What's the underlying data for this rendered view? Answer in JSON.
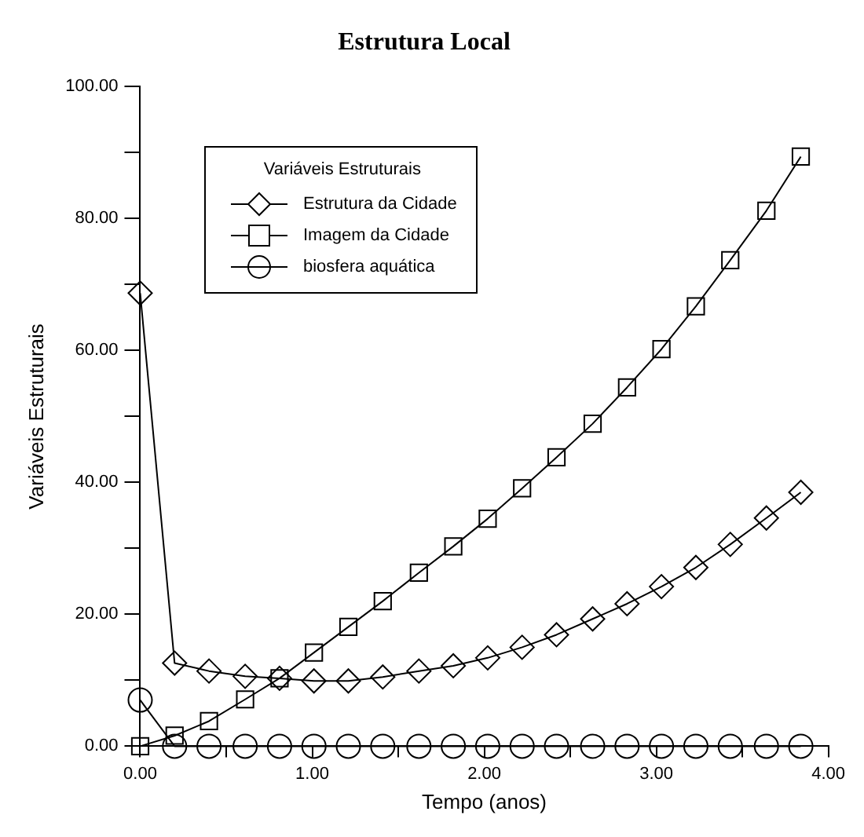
{
  "chart_data": {
    "type": "line",
    "title": "Estrutura Local",
    "xlabel": "Tempo (anos)",
    "ylabel": "Variáveis Estruturais",
    "legend_title": "Variáveis Estruturais",
    "legend": "top left",
    "x": [
      0,
      0.2,
      0.4,
      0.61,
      0.81,
      1.01,
      1.21,
      1.41,
      1.62,
      1.82,
      2.02,
      2.22,
      2.42,
      2.63,
      2.83,
      3.03,
      3.23,
      3.43,
      3.64,
      3.84
    ],
    "series": [
      {
        "name": "Estrutura da Cidade",
        "color": "#000000",
        "marker": "diamond",
        "values": [
          68.7,
          12.6,
          11.4,
          10.6,
          10.3,
          9.9,
          9.9,
          10.5,
          11.4,
          12.2,
          13.4,
          15.0,
          16.9,
          19.3,
          21.6,
          24.2,
          27.1,
          30.6,
          34.6,
          38.5
        ]
      },
      {
        "name": "Imagem da Cidade",
        "color": "#000000",
        "marker": "square",
        "values": [
          0,
          1.6,
          3.8,
          7.1,
          10.3,
          14.2,
          18.1,
          22.0,
          26.3,
          30.3,
          34.5,
          39.1,
          43.8,
          48.9,
          54.4,
          60.2,
          66.7,
          73.7,
          81.2,
          89.4
        ]
      },
      {
        "name": "biosfera aquática",
        "color": "#000000",
        "marker": "circle",
        "values": [
          7.0,
          0,
          0,
          0,
          0,
          0,
          0,
          0,
          0,
          0,
          0,
          0,
          0,
          0,
          0,
          0,
          0,
          0,
          0,
          0
        ]
      }
    ],
    "xlim": [
      0,
      4
    ],
    "xticks": [
      {
        "value": 0,
        "label": "0.00"
      },
      {
        "value": 0.5,
        "label": null
      },
      {
        "value": 1,
        "label": "1.00"
      },
      {
        "value": 1.5,
        "label": null
      },
      {
        "value": 2,
        "label": "2.00"
      },
      {
        "value": 2.5,
        "label": null
      },
      {
        "value": 3,
        "label": "3.00"
      },
      {
        "value": 3.5,
        "label": null
      },
      {
        "value": 4,
        "label": "4.00"
      }
    ],
    "ylim": [
      0,
      100
    ],
    "yticks": [
      {
        "value": 0,
        "label": "0.00"
      },
      {
        "value": 10,
        "label": null
      },
      {
        "value": 20,
        "label": "20.00"
      },
      {
        "value": 30,
        "label": null
      },
      {
        "value": 40,
        "label": "40.00"
      },
      {
        "value": 50,
        "label": null
      },
      {
        "value": 60,
        "label": "60.00"
      },
      {
        "value": 70,
        "label": null
      },
      {
        "value": 80,
        "label": "80.00"
      },
      {
        "value": 90,
        "label": null
      },
      {
        "value": 100,
        "label": "100.00"
      }
    ]
  }
}
